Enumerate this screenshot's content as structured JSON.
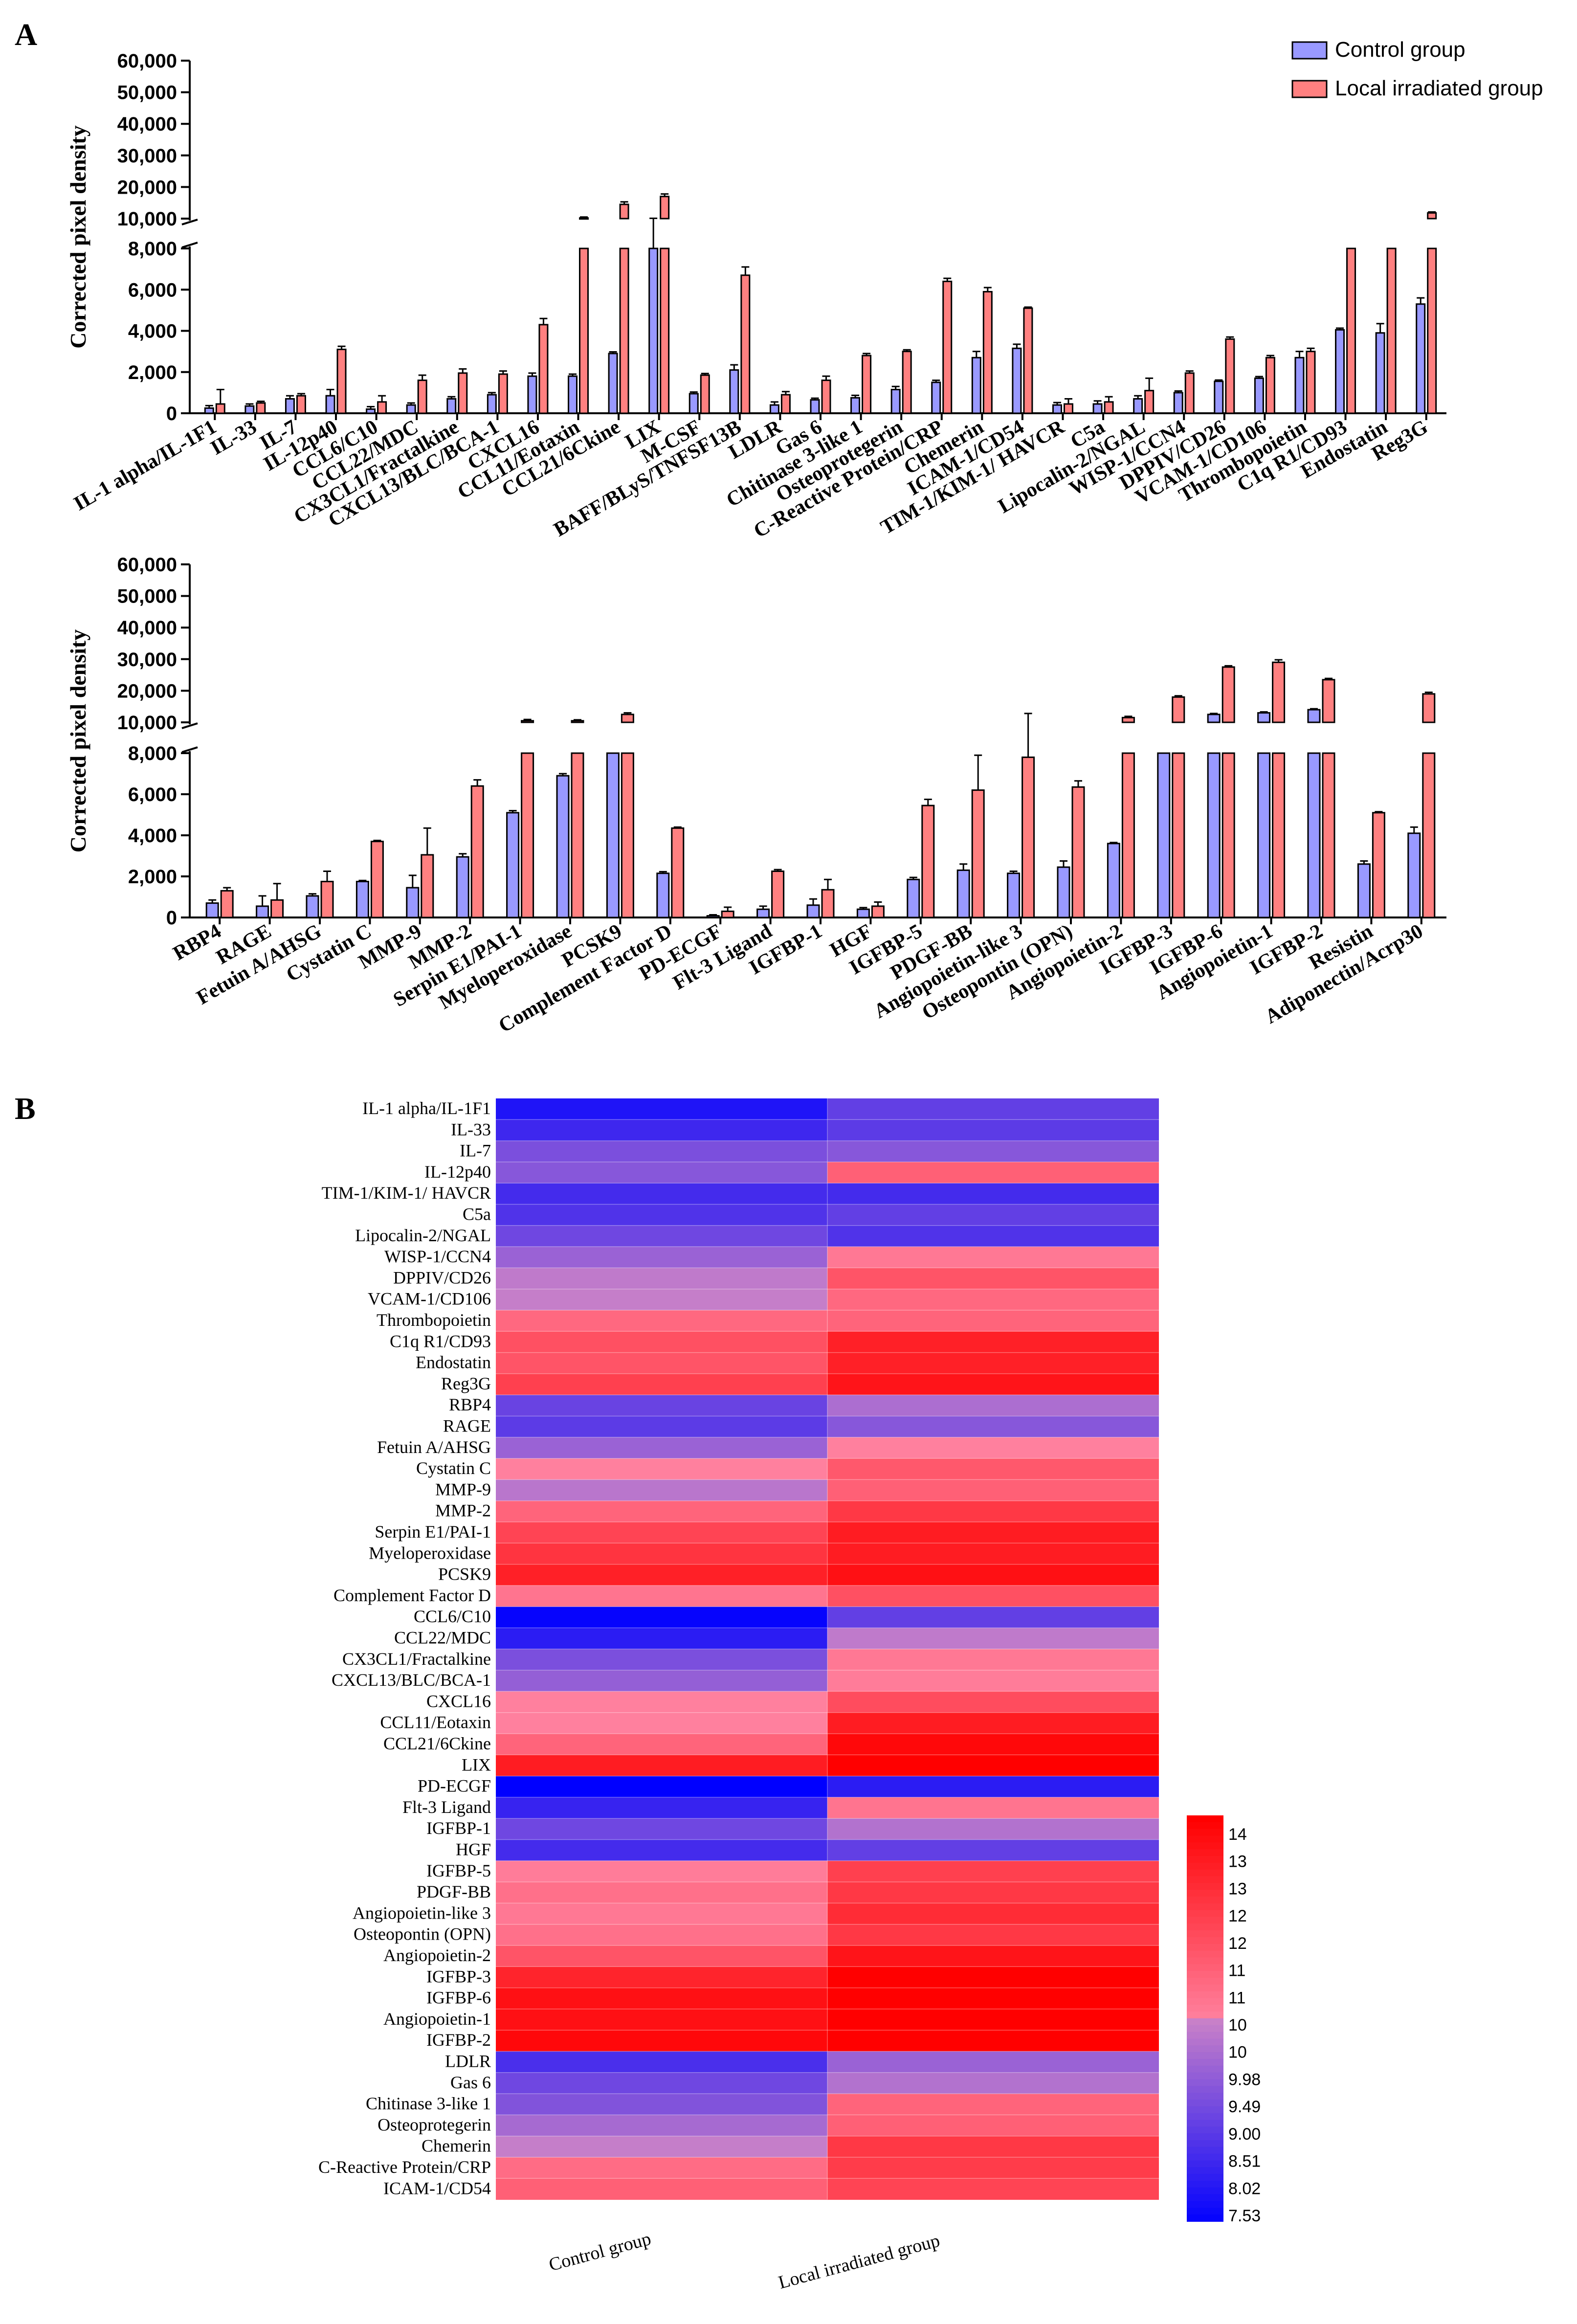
{
  "colors": {
    "control": "#9999FF",
    "irradiated": "#FF8080",
    "axis": "#000000",
    "heat_low": "#0000FF",
    "heat_mid": "#C080C0",
    "heat_high": "#FF0000"
  },
  "legend": {
    "control": "Control group",
    "irradiated": "Local irradiated group"
  },
  "chart_data": [
    {
      "panel_label": "A",
      "type": "bar",
      "ylabel": "Corrected pixel density",
      "ylim": [
        0,
        60000
      ],
      "y_axis_break": [
        8000,
        10000
      ],
      "yticks_lower": [
        "0",
        "2,000",
        "4,000",
        "6,000",
        "8,000"
      ],
      "yticks_upper": [
        "10,000",
        "20,000",
        "30,000",
        "40,000",
        "50,000",
        "60,000"
      ],
      "categories": [
        "IL-1 alpha/IL-1F1",
        "IL-33",
        "IL-7",
        "IL-12p40",
        "CCL6/C10",
        "CCL22/MDC",
        "CX3CL1/Fractalkine",
        "CXCL13/BLC/BCA-1",
        "CXCL16",
        "CCL11/Eotaxin",
        "CCL21/6Ckine",
        "LIX",
        "M-CSF",
        "BAFF/BLyS/TNFSF13B",
        "LDLR",
        "Gas 6",
        "Chitinase 3-like 1",
        "Osteoprotegerin",
        "C-Reactive Protein/CRP",
        "Chemerin",
        "ICAM-1/CD54",
        "TIM-1/KIM-1/ HAVCR",
        "C5a",
        "Lipocalin-2/NGAL",
        "WISP-1/CCN4",
        "DPPIV/CD26",
        "VCAM-1/CD106",
        "Thrombopoietin",
        "C1q R1/CD93",
        "Endostatin",
        "Reg3G"
      ],
      "series": [
        {
          "name": "Control group",
          "values": [
            250,
            350,
            700,
            850,
            200,
            400,
            700,
            900,
            1800,
            1800,
            2900,
            9800,
            950,
            2100,
            400,
            650,
            750,
            1150,
            1500,
            2700,
            3150,
            400,
            450,
            700,
            1000,
            1550,
            1700,
            2700,
            4050,
            3900,
            5300
          ],
          "errors": [
            120,
            100,
            150,
            300,
            120,
            100,
            100,
            100,
            150,
            100,
            80,
            300,
            80,
            250,
            150,
            80,
            120,
            150,
            100,
            300,
            200,
            120,
            150,
            150,
            80,
            60,
            80,
            300,
            80,
            450,
            300
          ]
        },
        {
          "name": "Local irradiated group",
          "values": [
            450,
            500,
            850,
            3100,
            550,
            1600,
            1950,
            1900,
            4300,
            10200,
            14500,
            17000,
            1850,
            6700,
            900,
            1600,
            2800,
            3000,
            6400,
            5900,
            5100,
            450,
            550,
            1100,
            1950,
            3600,
            2700,
            3000,
            9600,
            9500,
            11800
          ],
          "errors": [
            700,
            80,
            100,
            150,
            300,
            250,
            200,
            150,
            300,
            300,
            800,
            800,
            80,
            400,
            150,
            200,
            100,
            80,
            150,
            200,
            50,
            250,
            250,
            600,
            100,
            100,
            100,
            150,
            150,
            150,
            300
          ]
        }
      ]
    },
    {
      "type": "bar",
      "ylabel": "Corrected pixel density",
      "ylim": [
        0,
        60000
      ],
      "y_axis_break": [
        8000,
        10000
      ],
      "yticks_lower": [
        "0",
        "2,000",
        "4,000",
        "6,000",
        "8,000"
      ],
      "yticks_upper": [
        "10,000",
        "20,000",
        "30,000",
        "40,000",
        "50,000",
        "60,000"
      ],
      "categories": [
        "RBP4",
        "RAGE",
        "Fetuin A/AHSG",
        "Cystatin C",
        "MMP-9",
        "MMP-2",
        "Serpin E1/PAI-1",
        "Myeloperoxidase",
        "PCSK9",
        "Complement Factor D",
        "PD-ECGF",
        "Flt-3 Ligand",
        "IGFBP-1",
        "HGF",
        "IGFBP-5",
        "PDGF-BB",
        "Angiopoietin-like 3",
        "Osteopontin (OPN)",
        "Angiopoietin-2",
        "IGFBP-3",
        "IGFBP-6",
        "Angiopoietin-1",
        "IGFBP-2",
        "Resistin",
        "Adiponectin/Acrp30"
      ],
      "series": [
        {
          "name": "Control group",
          "values": [
            700,
            550,
            1050,
            1750,
            1450,
            2950,
            5100,
            6900,
            9600,
            2150,
            80,
            400,
            600,
            400,
            1850,
            2300,
            2150,
            2450,
            3600,
            8800,
            12500,
            13000,
            14000,
            2600,
            4100
          ],
          "errors": [
            150,
            500,
            100,
            50,
            600,
            150,
            100,
            100,
            200,
            80,
            50,
            150,
            300,
            80,
            100,
            300,
            100,
            300,
            50,
            800,
            300,
            300,
            300,
            150,
            300
          ]
        },
        {
          "name": "Local irradiated group",
          "values": [
            1300,
            850,
            1750,
            3700,
            3050,
            6400,
            10500,
            10500,
            12500,
            4350,
            300,
            2250,
            1350,
            550,
            5450,
            6200,
            7800,
            6350,
            11500,
            18000,
            27500,
            29000,
            23500,
            5100,
            19000
          ],
          "errors": [
            150,
            800,
            500,
            50,
            1300,
            300,
            400,
            300,
            500,
            50,
            200,
            80,
            500,
            200,
            300,
            1700,
            5000,
            300,
            400,
            400,
            400,
            800,
            400,
            50,
            500
          ]
        }
      ]
    },
    {
      "panel_label": "B",
      "type": "heatmap",
      "columns": [
        "Control group",
        "Local irradiated group"
      ],
      "rows": [
        "IL-1 alpha/IL-1F1",
        "IL-33",
        "IL-7",
        "IL-12p40",
        "TIM-1/KIM-1/ HAVCR",
        "C5a",
        "Lipocalin-2/NGAL",
        "WISP-1/CCN4",
        "DPPIV/CD26",
        "VCAM-1/CD106",
        "Thrombopoietin",
        "C1q R1/CD93",
        "Endostatin",
        "Reg3G",
        "RBP4",
        "RAGE",
        "Fetuin A/AHSG",
        "Cystatin C",
        "MMP-9",
        "MMP-2",
        "Serpin E1/PAI-1",
        "Myeloperoxidase",
        "PCSK9",
        "Complement Factor D",
        "CCL6/C10",
        "CCL22/MDC",
        "CX3CL1/Fractalkine",
        "CXCL13/BLC/BCA-1",
        "CXCL16",
        "CCL11/Eotaxin",
        "CCL21/6Ckine",
        "LIX",
        "PD-ECGF",
        "Flt-3 Ligand",
        "IGFBP-1",
        "HGF",
        "IGFBP-5",
        "PDGF-BB",
        "Angiopoietin-like 3",
        "Osteopontin (OPN)",
        "Angiopoietin-2",
        "IGFBP-3",
        "IGFBP-6",
        "Angiopoietin-1",
        "IGFBP-2",
        "LDLR",
        "Gas 6",
        "Chitinase 3-like 1",
        "Osteoprotegerin",
        "Chemerin",
        "C-Reactive Protein/CRP",
        "ICAM-1/CD54"
      ],
      "values": [
        [
          8.0,
          9.1
        ],
        [
          8.5,
          9.0
        ],
        [
          9.5,
          9.7
        ],
        [
          9.7,
          11.6
        ],
        [
          8.6,
          8.6
        ],
        [
          8.8,
          9.1
        ],
        [
          9.3,
          8.8
        ],
        [
          10.0,
          11.0
        ],
        [
          10.6,
          11.9
        ],
        [
          10.7,
          11.4
        ],
        [
          11.4,
          11.5
        ],
        [
          12.0,
          13.2
        ],
        [
          11.9,
          13.2
        ],
        [
          12.4,
          13.5
        ],
        [
          9.2,
          10.3
        ],
        [
          9.0,
          9.7
        ],
        [
          10.0,
          10.8
        ],
        [
          10.8,
          11.8
        ],
        [
          10.5,
          11.6
        ],
        [
          11.5,
          12.6
        ],
        [
          12.3,
          13.3
        ],
        [
          12.7,
          13.3
        ],
        [
          13.2,
          13.6
        ],
        [
          11.1,
          12.0
        ],
        [
          7.6,
          9.1
        ],
        [
          8.2,
          10.6
        ],
        [
          9.5,
          11.0
        ],
        [
          9.9,
          10.9
        ],
        [
          10.8,
          12.1
        ],
        [
          10.8,
          13.3
        ],
        [
          11.5,
          13.8
        ],
        [
          13.3,
          14.0
        ],
        [
          7.5,
          8.2
        ],
        [
          8.4,
          11.1
        ],
        [
          9.3,
          10.4
        ],
        [
          8.6,
          9.1
        ],
        [
          10.9,
          12.4
        ],
        [
          11.2,
          12.6
        ],
        [
          11.0,
          12.9
        ],
        [
          11.2,
          12.6
        ],
        [
          11.9,
          13.5
        ],
        [
          13.1,
          14.0
        ],
        [
          13.6,
          14.0
        ],
        [
          13.6,
          14.1
        ],
        [
          13.8,
          14.0
        ],
        [
          8.7,
          10.0
        ],
        [
          9.3,
          10.4
        ],
        [
          9.6,
          11.5
        ],
        [
          10.2,
          11.6
        ],
        [
          10.7,
          12.6
        ],
        [
          11.3,
          12.5
        ],
        [
          11.6,
          12.3
        ]
      ],
      "scale_labels": [
        "14",
        "13",
        "13",
        "12",
        "12",
        "11",
        "11",
        "10",
        "10",
        "9.98",
        "9.49",
        "9.00",
        "8.51",
        "8.02",
        "7.53"
      ],
      "scale_range": [
        7.53,
        14
      ]
    }
  ]
}
